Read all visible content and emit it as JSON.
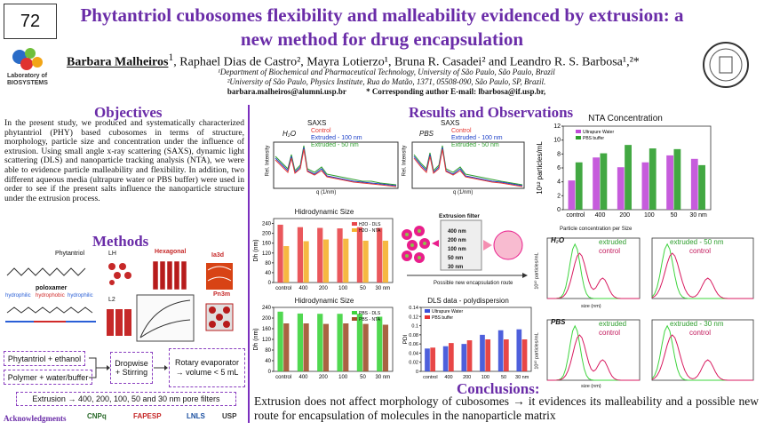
{
  "poster_number": "72",
  "title": "Phytantriol cubosomes flexibility and malleability evidenced by extrusion: a new method for drug encapsulation",
  "authors": {
    "first": "Barbara Malheiros",
    "first_sup": "1",
    "rest": ", Raphael Dias de Castro², Mayra Lotierzo¹, Bruna R. Casadei² and Leandro R. S. Barbosa¹,²*"
  },
  "affiliations": [
    "¹Department of Biochemical and Pharmaceutical Technology, University of São Paulo, São Paulo, Brazil",
    "²University of São Paulo, Physics Institute, Rua do Matão, 1371, 05508-090, São Paulo, SP, Brazil."
  ],
  "emails": "barbara.malheiros@alumni.usp.br          * Corresponding author E-mail: lbarbosa@if.usp.br,",
  "logo_text": "Laboratory of BIOSYSTEMS",
  "objectives": {
    "heading": "Objectives",
    "text": "In the present study, we produced and systematically characterized phytantriol (PHY) based cubosomes in terms of structure, morphology, particle size and concentration under the influence of extrusion. Using small angle x-ray scattering (SAXS), dynamic light scattering (DLS) and nanoparticle tracking analysis (NTA), we were able to evidence particle malleability and flexibility. In addition, two different aqueous media (ultrapure water or PBS buffer) were used in order to see if the present salts influence the nanoparticle structure under the extrusion process."
  },
  "methods": {
    "heading": "Methods",
    "labels": {
      "phytantriol": "Phytantriol",
      "poloxamer": "poloxamer",
      "hydrophilic1": "hydrophilic",
      "hydrophobic": "hydrophobic",
      "hydrophilic2": "hydrophilic",
      "lh": "LH",
      "hexagonal": "Hexagonal",
      "ia3d": "Ia3d",
      "l2": "L2",
      "pn3m": "Pn3m"
    },
    "flow": {
      "step1": "Phytantriol + ethanol",
      "step2": "Polymer + water/buffer",
      "step3": "Dropwise + Stirring",
      "step4": "Rotary evaporator → volume < 5 mL",
      "step5": "Extrusion → 400, 200, 100, 50 and 30 nm pore filters"
    }
  },
  "acknowledgments": "Acknowledgments",
  "sponsors": [
    "CNPq",
    "FAPESP",
    "LNLS",
    "USP"
  ],
  "results": {
    "heading": "Results and Observations"
  },
  "saxs": [
    {
      "title": "SAXS",
      "medium": "H₂O",
      "legend": [
        "Control",
        "Extruded - 100 nm",
        "Extruded - 50 nm"
      ],
      "ylabel": "Rel. Intensity",
      "xlabel": "q (1/nm)"
    },
    {
      "title": "SAXS",
      "medium": "PBS",
      "legend": [
        "Control",
        "Extruded - 100 nm",
        "Extruded - 50 nm"
      ],
      "ylabel": "Rel. Intensity",
      "xlabel": "q (1/nm)"
    }
  ],
  "extrusion_filter": {
    "title": "Extrusion filter",
    "sizes": [
      "400 nm",
      "200 nm",
      "100 nm",
      "50 nm",
      "30 nm"
    ],
    "caption": "Possible new encapsulation route"
  },
  "chart_data": [
    {
      "type": "bar",
      "title": "Hidrodynamic Size",
      "categories": [
        "control",
        "400",
        "200",
        "100",
        "50",
        "30 nm"
      ],
      "ylabel": "Dh (nm)",
      "ylim": [
        0,
        260
      ],
      "series": [
        {
          "name": "H2O - DLS",
          "values": [
            235,
            225,
            222,
            220,
            225,
            222
          ],
          "color": "#e8464a"
        },
        {
          "name": "H2O - NTA",
          "values": [
            148,
            168,
            175,
            178,
            170,
            170
          ],
          "color": "#f5b02e"
        }
      ]
    },
    {
      "type": "bar",
      "title": "Hidrodynamic Size",
      "categories": [
        "control",
        "400",
        "200",
        "100",
        "50",
        "30 nm"
      ],
      "ylabel": "Dh (nm)",
      "ylim": [
        0,
        240
      ],
      "series": [
        {
          "name": "PBS - DLS",
          "values": [
            224,
            217,
            216,
            216,
            216,
            205
          ],
          "color": "#3ed43e"
        },
        {
          "name": "PBS - NTA",
          "values": [
            180,
            180,
            178,
            180,
            178,
            175
          ],
          "color": "#a0522d"
        }
      ]
    },
    {
      "type": "bar",
      "title": "DLS data - polydispersion",
      "categories": [
        "control",
        "400",
        "200",
        "100",
        "50",
        "30 nm"
      ],
      "ylabel": "PDI",
      "ylim": [
        0,
        0.14
      ],
      "series": [
        {
          "name": "Ultrapure Water",
          "values": [
            0.05,
            0.055,
            0.06,
            0.08,
            0.09,
            0.092
          ],
          "color": "#3b4fd8"
        },
        {
          "name": "PBS buffer",
          "values": [
            0.052,
            0.062,
            0.068,
            0.07,
            0.07,
            0.07
          ],
          "color": "#e63333"
        }
      ]
    },
    {
      "type": "bar",
      "title": "NTA Concentration",
      "categories": [
        "control",
        "400",
        "200",
        "100",
        "50",
        "30 nm"
      ],
      "ylabel": "10¹² particles/mL",
      "ylim": [
        0,
        12
      ],
      "series": [
        {
          "name": "Ultrapure Water",
          "values": [
            4.2,
            7.5,
            6.1,
            6.8,
            7.8,
            7.3
          ],
          "color": "#c04ad8"
        },
        {
          "name": "PBS buffer",
          "values": [
            6.8,
            8.1,
            9.3,
            8.8,
            8.7,
            6.4
          ],
          "color": "#2e9e2e"
        }
      ]
    }
  ],
  "particle_conc": {
    "title": "Particle concentration per Size",
    "ylabel": "10¹⁰ particles/mL",
    "xlabel": "size (nm)",
    "panels": [
      {
        "medium": "H₂O",
        "extruded": "extruded",
        "control": "control"
      },
      {
        "medium": "",
        "extruded": "extruded - 50 nm",
        "control": "control"
      },
      {
        "medium": "PBS",
        "extruded": "extruded",
        "control": "control"
      },
      {
        "medium": "",
        "extruded": "extruded - 30 nm",
        "control": "control"
      }
    ]
  },
  "conclusions": {
    "heading": "Conclusions:",
    "text": "Extrusion does not affect morphology of cubosomes → it evidences its malleability and a possible new route for encapsulation of molecules in the nanoparticle matrix"
  }
}
